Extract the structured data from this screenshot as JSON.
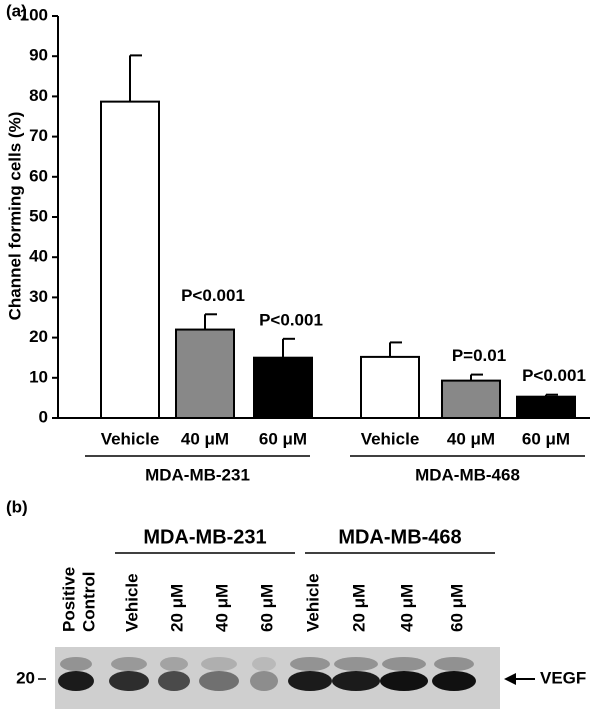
{
  "panel_labels": [
    "(a)",
    "(b)"
  ],
  "chart_data": {
    "type": "bar",
    "ylabel": "Channel forming cells (%)",
    "categories": [
      "Vehicle",
      "40 μM",
      "60 μM",
      "Vehicle",
      "40 μM",
      "60 μM"
    ],
    "groups": [
      "MDA-MB-231",
      "MDA-MB-468"
    ],
    "values": [
      78.7,
      22,
      15,
      15.2,
      9.3,
      5.3
    ],
    "errors": [
      11.5,
      3.8,
      4.7,
      3.6,
      1.5,
      0.5
    ],
    "colors": [
      "#ffffff",
      "#888888",
      "#000000",
      "#ffffff",
      "#888888",
      "#000000"
    ],
    "annotations": [
      null,
      "P<0.001",
      "P<0.001",
      null,
      "P=0.01",
      "P<0.001"
    ],
    "ylim": [
      0,
      100
    ],
    "yticks": [
      0,
      10,
      20,
      30,
      40,
      50,
      60,
      70,
      80,
      90,
      100
    ]
  },
  "blot": {
    "groups": [
      "MDA-MB-231",
      "MDA-MB-468"
    ],
    "lanes": [
      [
        "Positive",
        "Control"
      ],
      [
        "Vehicle"
      ],
      [
        "20 μM"
      ],
      [
        "40 μM"
      ],
      [
        "60 μM"
      ],
      [
        "Vehicle"
      ],
      [
        "20 μM"
      ],
      [
        "40 μM"
      ],
      [
        "60 μM"
      ]
    ],
    "marker": "20",
    "band_label": "VEGF"
  }
}
